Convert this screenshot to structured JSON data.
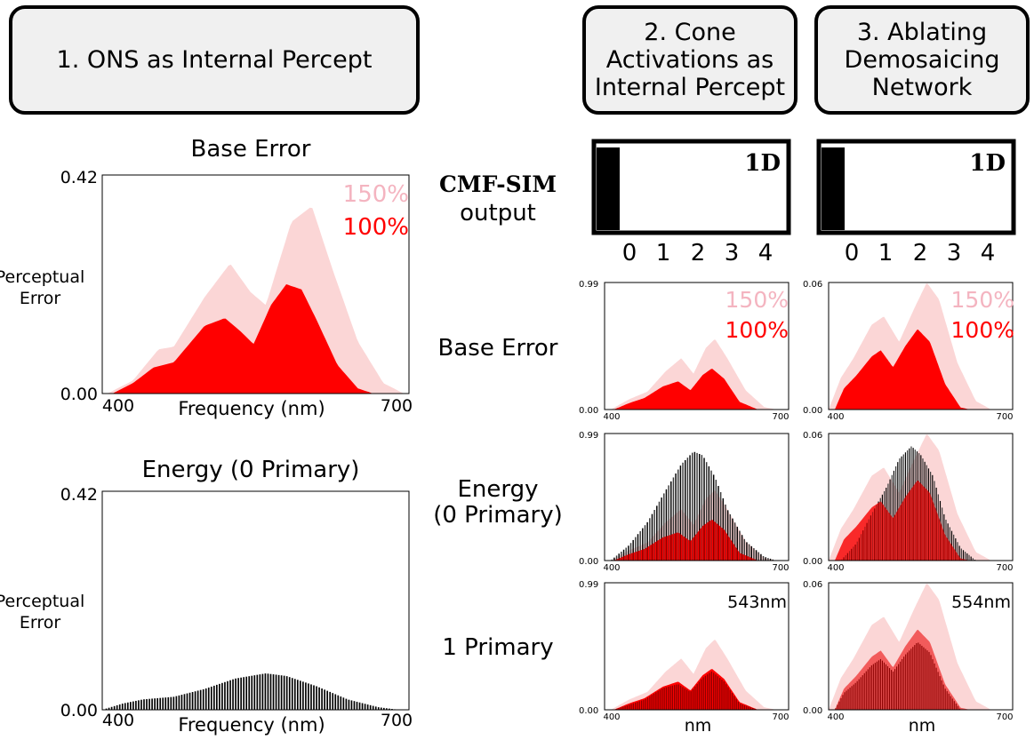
{
  "headers": {
    "ons": "1. ONS as Internal Percept",
    "cone": "2. Cone\nActivations as\nInternal Percept",
    "ablate": "3. Ablating\nDemosaicing\nNetwork"
  },
  "row_labels": {
    "cmf_line1": "CMF-SIM",
    "cmf_line2": "output",
    "base_error": "Base Error",
    "energy": "Energy\n(0 Primary)",
    "one_primary": "1 Primary"
  },
  "legend": {
    "high": "150%",
    "low": "100%"
  },
  "colors": {
    "light": "#fbd6d6",
    "red": "#ff0000",
    "dark": "#000000",
    "darkred": "#8b0000",
    "midred": "#f25b5b",
    "legend_light": "#f4b4c0"
  },
  "cmf_sim": {
    "badge": "1D",
    "ticks": [
      "0",
      "1",
      "2",
      "3",
      "4"
    ],
    "cone_value": 0,
    "ablate_value": 0
  },
  "chart_data": [
    {
      "id": "ons_base",
      "type": "area",
      "title": "Base Error",
      "xlabel": "Frequency (nm)",
      "ylabel": "Perceptual\nError",
      "xlim": [
        400,
        700
      ],
      "ylim": [
        0,
        0.42
      ],
      "xtick_labels": [
        "400",
        "700"
      ],
      "ytick_labels": [
        "0.00",
        "0.42"
      ],
      "series": [
        {
          "name": "150%",
          "points": [
            [
              405,
              0.0
            ],
            [
              430,
              0.025
            ],
            [
              455,
              0.085
            ],
            [
              470,
              0.09
            ],
            [
              500,
              0.185
            ],
            [
              525,
              0.25
            ],
            [
              545,
              0.195
            ],
            [
              560,
              0.17
            ],
            [
              585,
              0.33
            ],
            [
              605,
              0.36
            ],
            [
              625,
              0.24
            ],
            [
              650,
              0.1
            ],
            [
              675,
              0.02
            ],
            [
              695,
              0.0
            ]
          ]
        },
        {
          "name": "100%",
          "points": [
            [
              410,
              0.0
            ],
            [
              430,
              0.02
            ],
            [
              450,
              0.05
            ],
            [
              470,
              0.06
            ],
            [
              500,
              0.13
            ],
            [
              520,
              0.145
            ],
            [
              535,
              0.12
            ],
            [
              548,
              0.095
            ],
            [
              565,
              0.17
            ],
            [
              580,
              0.21
            ],
            [
              595,
              0.2
            ],
            [
              610,
              0.14
            ],
            [
              630,
              0.055
            ],
            [
              650,
              0.01
            ],
            [
              665,
              0.0
            ]
          ]
        }
      ]
    },
    {
      "id": "ons_energy",
      "type": "bar",
      "title": "Energy (0 Primary)",
      "xlabel": "Frequency (nm)",
      "ylabel": "Perceptual\nError",
      "xlim": [
        400,
        700
      ],
      "ylim": [
        0,
        0.42
      ],
      "xtick_labels": [
        "400",
        "700"
      ],
      "ytick_labels": [
        "0.00",
        "0.42"
      ],
      "bar_series": {
        "name": "energy",
        "points": [
          [
            400,
            0.0
          ],
          [
            420,
            0.012
          ],
          [
            440,
            0.02
          ],
          [
            470,
            0.025
          ],
          [
            500,
            0.04
          ],
          [
            530,
            0.06
          ],
          [
            560,
            0.07
          ],
          [
            580,
            0.065
          ],
          [
            610,
            0.045
          ],
          [
            640,
            0.02
          ],
          [
            670,
            0.005
          ],
          [
            690,
            0.0
          ]
        ]
      }
    },
    {
      "id": "cone_base",
      "type": "area",
      "xlim": [
        400,
        700
      ],
      "ylim": [
        0,
        0.99
      ],
      "xtick_labels": [
        "400",
        "700"
      ],
      "ytick_labels": [
        "0.00",
        "0.99"
      ],
      "series": [
        {
          "name": "150%",
          "points": [
            [
              410,
              0.0
            ],
            [
              440,
              0.08
            ],
            [
              470,
              0.14
            ],
            [
              500,
              0.3
            ],
            [
              525,
              0.4
            ],
            [
              545,
              0.28
            ],
            [
              565,
              0.48
            ],
            [
              580,
              0.55
            ],
            [
              600,
              0.4
            ],
            [
              630,
              0.15
            ],
            [
              660,
              0.02
            ],
            [
              680,
              0.0
            ]
          ]
        },
        {
          "name": "100%",
          "points": [
            [
              415,
              0.0
            ],
            [
              440,
              0.05
            ],
            [
              465,
              0.09
            ],
            [
              495,
              0.18
            ],
            [
              520,
              0.22
            ],
            [
              540,
              0.15
            ],
            [
              560,
              0.27
            ],
            [
              575,
              0.32
            ],
            [
              595,
              0.24
            ],
            [
              620,
              0.06
            ],
            [
              650,
              0.0
            ]
          ]
        }
      ]
    },
    {
      "id": "ablate_base",
      "type": "area",
      "xlim": [
        400,
        700
      ],
      "ylim": [
        0,
        0.06
      ],
      "xtick_labels": [
        "400",
        "700"
      ],
      "ytick_labels": [
        "0.00",
        "0.06"
      ],
      "series": [
        {
          "name": "150%",
          "points": [
            [
              400,
              0.0
            ],
            [
              420,
              0.015
            ],
            [
              440,
              0.024
            ],
            [
              470,
              0.04
            ],
            [
              490,
              0.044
            ],
            [
              515,
              0.032
            ],
            [
              540,
              0.048
            ],
            [
              560,
              0.06
            ],
            [
              580,
              0.052
            ],
            [
              610,
              0.022
            ],
            [
              640,
              0.004
            ],
            [
              665,
              0.0
            ]
          ]
        },
        {
          "name": "100%",
          "points": [
            [
              410,
              0.0
            ],
            [
              425,
              0.01
            ],
            [
              445,
              0.016
            ],
            [
              470,
              0.025
            ],
            [
              485,
              0.028
            ],
            [
              505,
              0.02
            ],
            [
              525,
              0.03
            ],
            [
              545,
              0.038
            ],
            [
              565,
              0.032
            ],
            [
              590,
              0.012
            ],
            [
              615,
              0.001
            ],
            [
              630,
              0.0
            ]
          ]
        }
      ]
    },
    {
      "id": "cone_energy",
      "type": "area",
      "xlim": [
        400,
        700
      ],
      "ylim": [
        0,
        0.99
      ],
      "xtick_labels": [
        "400",
        "700"
      ],
      "ytick_labels": [
        "0.00",
        "0.99"
      ],
      "series": [
        {
          "name": "150%",
          "points": [
            [
              410,
              0.0
            ],
            [
              440,
              0.08
            ],
            [
              470,
              0.14
            ],
            [
              500,
              0.3
            ],
            [
              525,
              0.4
            ],
            [
              545,
              0.28
            ],
            [
              565,
              0.48
            ],
            [
              580,
              0.55
            ],
            [
              600,
              0.4
            ],
            [
              630,
              0.15
            ],
            [
              660,
              0.02
            ],
            [
              680,
              0.0
            ]
          ]
        },
        {
          "name": "100%",
          "points": [
            [
              415,
              0.0
            ],
            [
              440,
              0.05
            ],
            [
              465,
              0.09
            ],
            [
              495,
              0.18
            ],
            [
              520,
              0.22
            ],
            [
              540,
              0.15
            ],
            [
              560,
              0.27
            ],
            [
              575,
              0.32
            ],
            [
              595,
              0.24
            ],
            [
              620,
              0.06
            ],
            [
              650,
              0.0
            ]
          ]
        }
      ],
      "bar_series": {
        "name": "energy",
        "points": [
          [
            410,
            0.0
          ],
          [
            440,
            0.12
          ],
          [
            470,
            0.3
          ],
          [
            500,
            0.55
          ],
          [
            525,
            0.75
          ],
          [
            545,
            0.85
          ],
          [
            560,
            0.82
          ],
          [
            580,
            0.65
          ],
          [
            600,
            0.4
          ],
          [
            630,
            0.15
          ],
          [
            660,
            0.03
          ],
          [
            680,
            0.0
          ]
        ]
      }
    },
    {
      "id": "ablate_energy",
      "type": "area",
      "xlim": [
        400,
        700
      ],
      "ylim": [
        0,
        0.06
      ],
      "xtick_labels": [
        "400",
        "700"
      ],
      "ytick_labels": [
        "0.00",
        "0.06"
      ],
      "series": [
        {
          "name": "150%",
          "points": [
            [
              400,
              0.0
            ],
            [
              420,
              0.015
            ],
            [
              440,
              0.024
            ],
            [
              470,
              0.04
            ],
            [
              490,
              0.044
            ],
            [
              515,
              0.032
            ],
            [
              540,
              0.048
            ],
            [
              560,
              0.06
            ],
            [
              580,
              0.052
            ],
            [
              610,
              0.022
            ],
            [
              640,
              0.004
            ],
            [
              665,
              0.0
            ]
          ]
        },
        {
          "name": "100%",
          "points": [
            [
              410,
              0.0
            ],
            [
              425,
              0.01
            ],
            [
              445,
              0.016
            ],
            [
              470,
              0.025
            ],
            [
              485,
              0.028
            ],
            [
              505,
              0.02
            ],
            [
              525,
              0.03
            ],
            [
              545,
              0.038
            ],
            [
              565,
              0.032
            ],
            [
              590,
              0.012
            ],
            [
              615,
              0.001
            ],
            [
              630,
              0.0
            ]
          ]
        }
      ],
      "bar_series": {
        "name": "energy",
        "points": [
          [
            420,
            0.0
          ],
          [
            445,
            0.008
          ],
          [
            470,
            0.022
          ],
          [
            495,
            0.035
          ],
          [
            515,
            0.048
          ],
          [
            535,
            0.054
          ],
          [
            550,
            0.05
          ],
          [
            570,
            0.04
          ],
          [
            590,
            0.02
          ],
          [
            615,
            0.006
          ],
          [
            640,
            0.0
          ]
        ]
      }
    },
    {
      "id": "cone_one",
      "type": "area",
      "annotation": "543nm",
      "xlabel": "nm",
      "xlim": [
        400,
        700
      ],
      "ylim": [
        0,
        0.99
      ],
      "xtick_labels": [
        "400",
        "700"
      ],
      "ytick_labels": [
        "0.00",
        "0.99"
      ],
      "series": [
        {
          "name": "150%",
          "points": [
            [
              410,
              0.0
            ],
            [
              440,
              0.08
            ],
            [
              470,
              0.14
            ],
            [
              500,
              0.3
            ],
            [
              525,
              0.4
            ],
            [
              545,
              0.28
            ],
            [
              565,
              0.48
            ],
            [
              580,
              0.55
            ],
            [
              600,
              0.4
            ],
            [
              630,
              0.15
            ],
            [
              660,
              0.02
            ],
            [
              680,
              0.0
            ]
          ]
        },
        {
          "name": "100%",
          "points": [
            [
              415,
              0.0
            ],
            [
              440,
              0.05
            ],
            [
              465,
              0.09
            ],
            [
              495,
              0.18
            ],
            [
              520,
              0.22
            ],
            [
              540,
              0.15
            ],
            [
              560,
              0.27
            ],
            [
              575,
              0.32
            ],
            [
              595,
              0.24
            ],
            [
              620,
              0.06
            ],
            [
              650,
              0.0
            ]
          ]
        }
      ],
      "bar_series": {
        "name": "1 primary",
        "points": [
          [
            415,
            0.0
          ],
          [
            440,
            0.04
          ],
          [
            465,
            0.08
          ],
          [
            495,
            0.17
          ],
          [
            520,
            0.2
          ],
          [
            540,
            0.14
          ],
          [
            560,
            0.25
          ],
          [
            575,
            0.3
          ],
          [
            595,
            0.22
          ],
          [
            620,
            0.05
          ],
          [
            650,
            0.0
          ]
        ]
      }
    },
    {
      "id": "ablate_one",
      "type": "area",
      "annotation": "554nm",
      "xlabel": "nm",
      "xlim": [
        400,
        700
      ],
      "ylim": [
        0,
        0.06
      ],
      "xtick_labels": [
        "400",
        "700"
      ],
      "ytick_labels": [
        "0.00",
        "0.06"
      ],
      "series": [
        {
          "name": "150%",
          "points": [
            [
              400,
              0.0
            ],
            [
              420,
              0.015
            ],
            [
              440,
              0.024
            ],
            [
              470,
              0.04
            ],
            [
              490,
              0.044
            ],
            [
              515,
              0.032
            ],
            [
              540,
              0.048
            ],
            [
              560,
              0.06
            ],
            [
              580,
              0.052
            ],
            [
              610,
              0.022
            ],
            [
              640,
              0.004
            ],
            [
              665,
              0.0
            ]
          ]
        },
        {
          "name": "100%",
          "points": [
            [
              410,
              0.0
            ],
            [
              425,
              0.01
            ],
            [
              445,
              0.016
            ],
            [
              470,
              0.025
            ],
            [
              485,
              0.028
            ],
            [
              505,
              0.02
            ],
            [
              525,
              0.03
            ],
            [
              545,
              0.038
            ],
            [
              565,
              0.032
            ],
            [
              590,
              0.012
            ],
            [
              615,
              0.001
            ],
            [
              630,
              0.0
            ]
          ]
        }
      ],
      "bar_series": {
        "name": "1 primary",
        "points": [
          [
            410,
            0.0
          ],
          [
            425,
            0.008
          ],
          [
            445,
            0.013
          ],
          [
            470,
            0.021
          ],
          [
            485,
            0.024
          ],
          [
            505,
            0.018
          ],
          [
            525,
            0.026
          ],
          [
            545,
            0.032
          ],
          [
            565,
            0.027
          ],
          [
            590,
            0.01
          ],
          [
            615,
            0.0
          ]
        ]
      }
    }
  ]
}
